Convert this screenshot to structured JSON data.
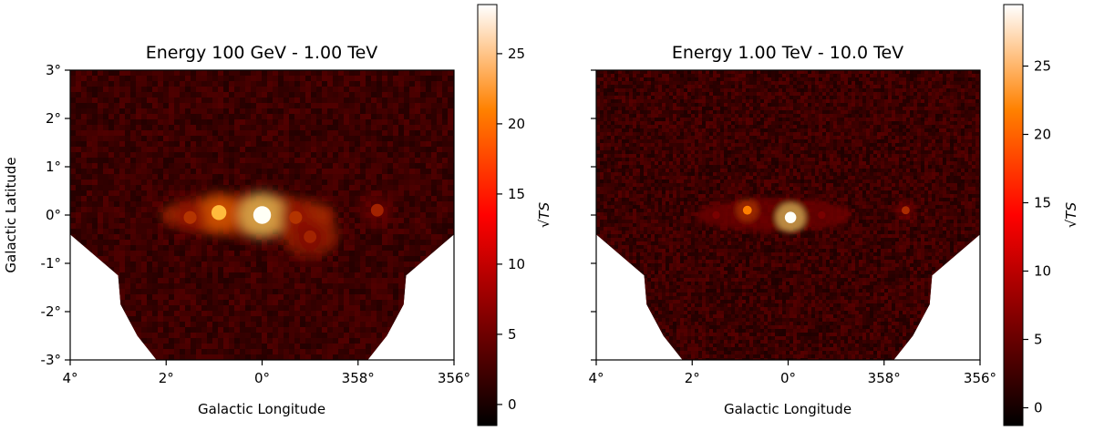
{
  "chart_data": [
    {
      "type": "heatmap",
      "title": "Energy 100 GeV - 1.00 TeV",
      "xlabel": "Galactic Longitude",
      "ylabel": "Galactic Latitude",
      "x_ticks": [
        "4°",
        "2°",
        "0°",
        "358°",
        "356°"
      ],
      "y_ticks": [
        "3°",
        "2°",
        "1°",
        "0°",
        "-1°",
        "-2°",
        "-3°"
      ],
      "x_range_deg": [
        4,
        -4
      ],
      "y_range_deg": [
        -3,
        3
      ],
      "colorbar": {
        "label": "√TS",
        "ticks": [
          0,
          5,
          10,
          15,
          20,
          25
        ],
        "range": [
          -1.5,
          28.5
        ],
        "colormap": "afmhot"
      },
      "sources": [
        {
          "l": 0.0,
          "b": 0.0,
          "sqrt_ts": 28
        },
        {
          "l": 0.9,
          "b": 0.05,
          "sqrt_ts": 17
        },
        {
          "l": 1.5,
          "b": -0.05,
          "sqrt_ts": 9
        },
        {
          "l": -0.7,
          "b": -0.05,
          "sqrt_ts": 9
        },
        {
          "l": -1.0,
          "b": -0.45,
          "sqrt_ts": 8
        },
        {
          "l": -2.4,
          "b": 0.1,
          "sqrt_ts": 8
        }
      ]
    },
    {
      "type": "heatmap",
      "title": "Energy 1.00 TeV - 10.0 TeV",
      "xlabel": "Galactic Longitude",
      "ylabel": "",
      "x_ticks": [
        "4°",
        "2°",
        "0°",
        "358°",
        "356°"
      ],
      "y_ticks": [],
      "x_range_deg": [
        4,
        -4
      ],
      "y_range_deg": [
        -3,
        3
      ],
      "colorbar": {
        "label": "√TS",
        "ticks": [
          0,
          5,
          10,
          15,
          20,
          25
        ],
        "range": [
          -1.3,
          29.5
        ],
        "colormap": "afmhot"
      },
      "sources": [
        {
          "l": -0.05,
          "b": -0.05,
          "sqrt_ts": 29
        },
        {
          "l": 0.85,
          "b": 0.1,
          "sqrt_ts": 14
        },
        {
          "l": 1.5,
          "b": 0.0,
          "sqrt_ts": 6
        },
        {
          "l": -0.7,
          "b": 0.0,
          "sqrt_ts": 6
        },
        {
          "l": -2.45,
          "b": 0.1,
          "sqrt_ts": 9
        }
      ]
    }
  ]
}
